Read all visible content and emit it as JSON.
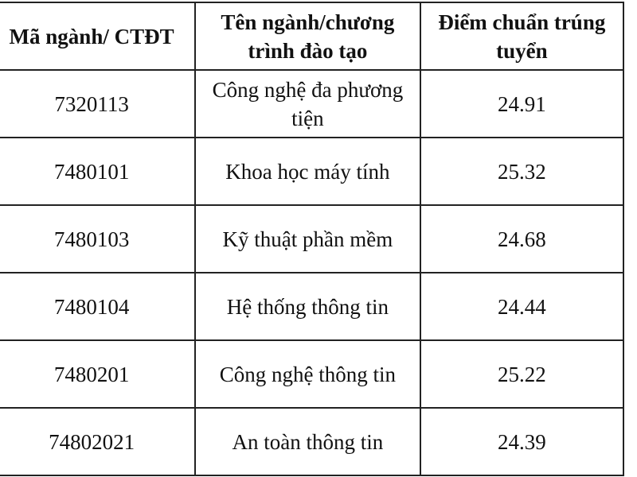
{
  "table": {
    "headers": [
      "Mã ngành/ CTĐT",
      "Tên ngành/chương\ntrình đào tạo",
      "Điểm chuẩn trúng\ntuyển"
    ],
    "header_lines": [
      [
        "Mã ngành/ CTĐT"
      ],
      [
        "Tên ngành/chương",
        "trình đào tạo"
      ],
      [
        "Điểm chuẩn trúng",
        "tuyển"
      ]
    ],
    "rows": [
      {
        "code": "7320113",
        "name": "Công nghệ đa phương tiện",
        "score": "24.91"
      },
      {
        "code": "7480101",
        "name": "Khoa học máy tính",
        "score": "25.32"
      },
      {
        "code": "7480103",
        "name": "Kỹ thuật phần mềm",
        "score": "24.68"
      },
      {
        "code": "7480104",
        "name": "Hệ thống thông tin",
        "score": "24.44"
      },
      {
        "code": "7480201",
        "name": "Công nghệ thông tin",
        "score": "25.22"
      },
      {
        "code": "74802021",
        "name": "An toàn thông tin",
        "score": "24.39"
      }
    ]
  }
}
